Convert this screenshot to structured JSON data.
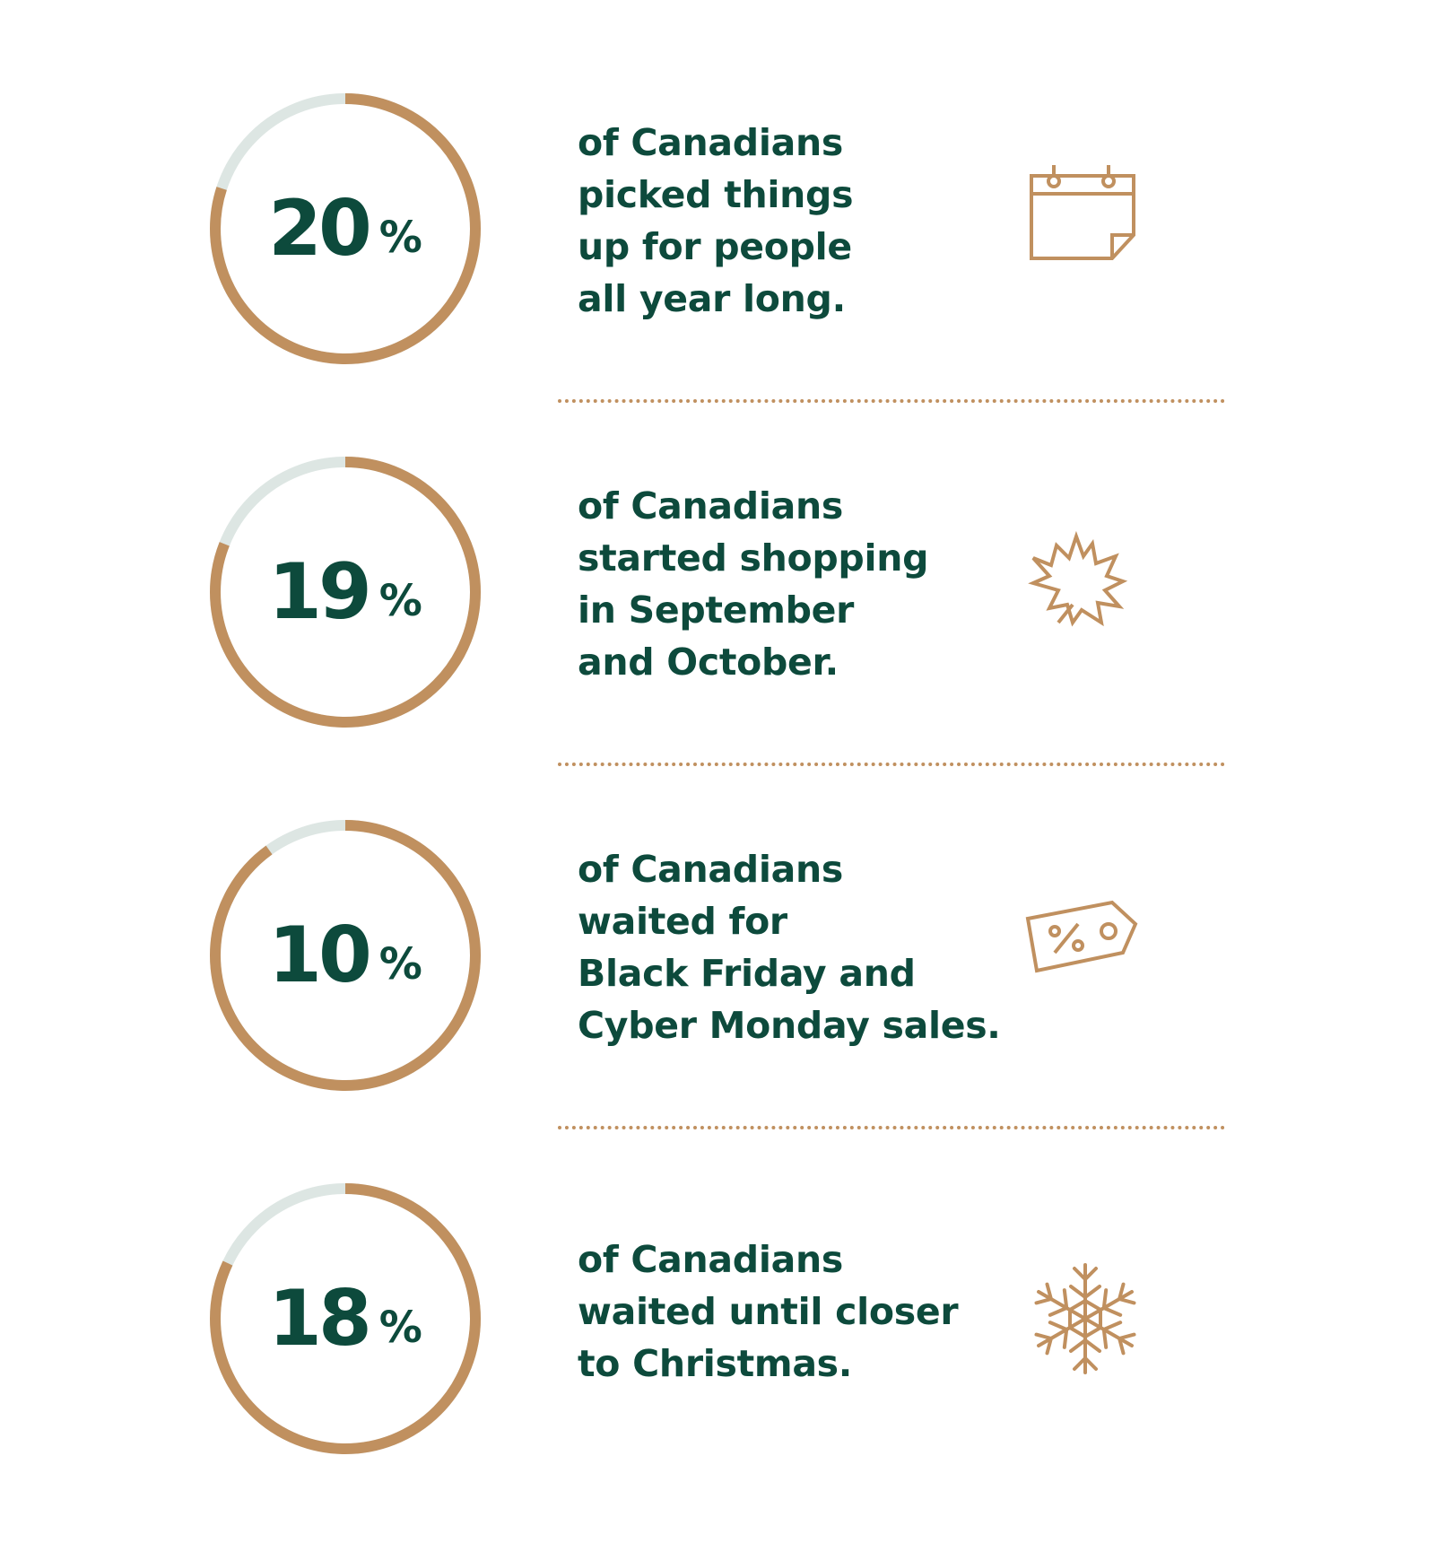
{
  "stats": [
    {
      "value": "20",
      "percent_sign": "%",
      "fraction": 0.2,
      "lines": [
        "of Canadians",
        "picked things",
        "up for people",
        "all year long."
      ],
      "icon": "calendar-icon"
    },
    {
      "value": "19",
      "percent_sign": "%",
      "fraction": 0.19,
      "lines": [
        "of Canadians",
        "started shopping",
        "in September",
        "and October."
      ],
      "icon": "maple-leaf-icon"
    },
    {
      "value": "10",
      "percent_sign": "%",
      "fraction": 0.1,
      "lines": [
        "of Canadians",
        "waited for",
        "Black Friday and",
        "Cyber Monday sales."
      ],
      "icon": "price-tag-percent-icon"
    },
    {
      "value": "18",
      "percent_sign": "%",
      "fraction": 0.18,
      "lines": [
        "of Canadians",
        "waited until closer",
        "to Christmas."
      ],
      "icon": "snowflake-icon"
    }
  ],
  "colors": {
    "text": "#0d4a3c",
    "accent": "#c0905f",
    "track": "#dde6e3"
  }
}
